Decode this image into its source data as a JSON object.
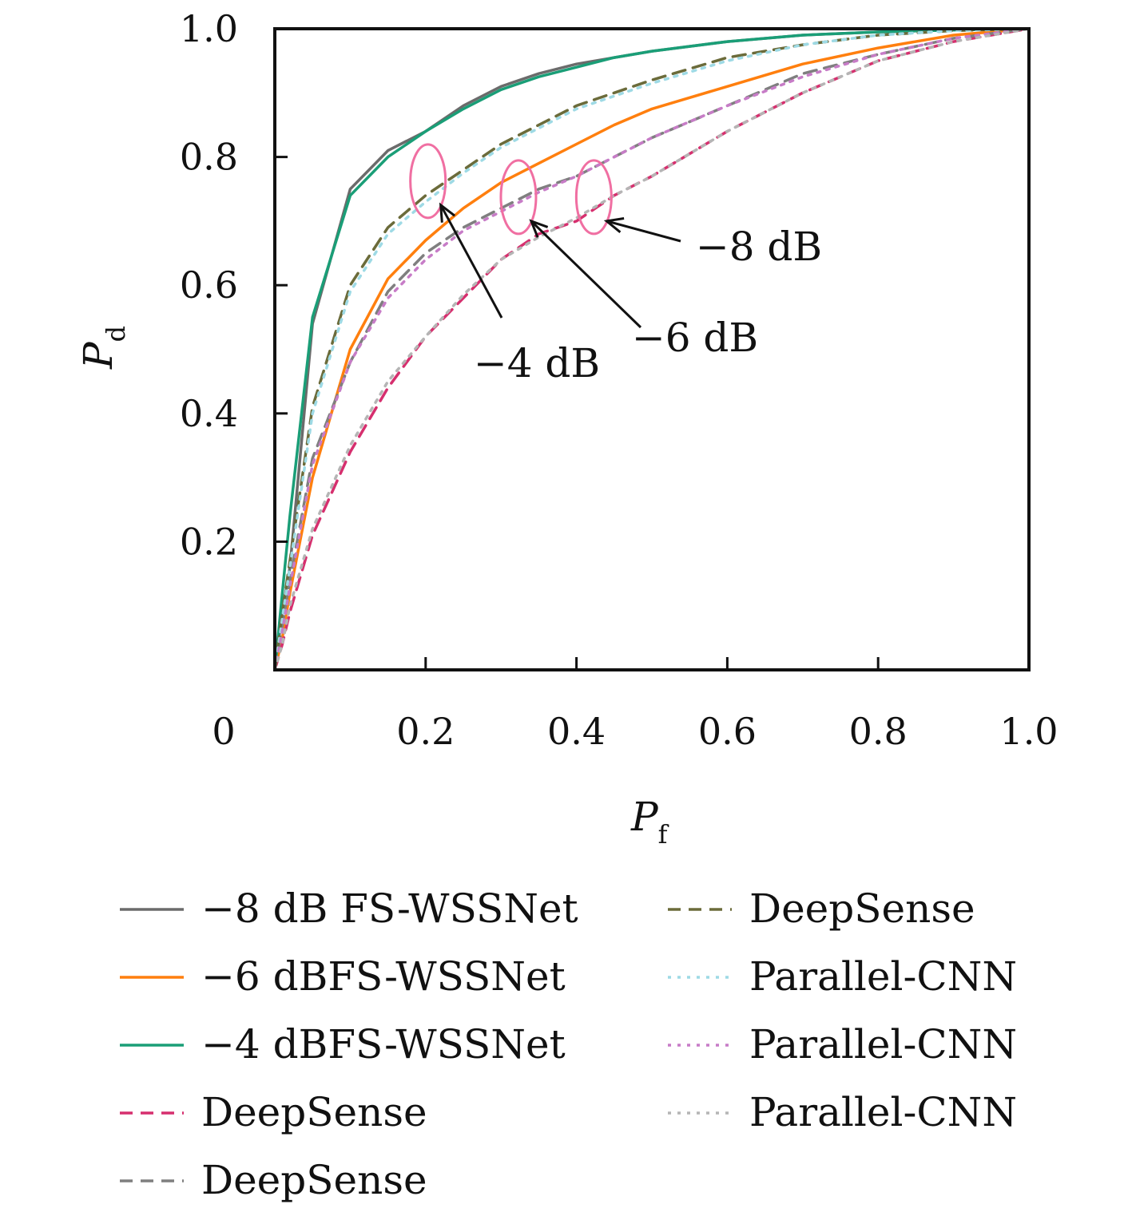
{
  "chart_data": {
    "type": "line",
    "title": "",
    "xlabel": {
      "main": "P",
      "sub": "f"
    },
    "ylabel": {
      "main": "P",
      "sub": "d"
    },
    "xlim": [
      0,
      1.0
    ],
    "ylim": [
      0,
      1.0
    ],
    "x_ticks": [
      {
        "value": 0,
        "label": "0"
      },
      {
        "value": 0.2,
        "label": "0.2"
      },
      {
        "value": 0.4,
        "label": "0.4"
      },
      {
        "value": 0.6,
        "label": "0.6"
      },
      {
        "value": 0.8,
        "label": "0.8"
      },
      {
        "value": 1.0,
        "label": "1.0"
      }
    ],
    "y_ticks": [
      {
        "value": 0.2,
        "label": "0.2"
      },
      {
        "value": 0.4,
        "label": "0.4"
      },
      {
        "value": 0.6,
        "label": "0.6"
      },
      {
        "value": 0.8,
        "label": "0.8"
      },
      {
        "value": 1.0,
        "label": "1.0"
      }
    ],
    "grid": false,
    "legend_position": "bottom",
    "x": [
      0,
      0.01,
      0.02,
      0.05,
      0.1,
      0.15,
      0.2,
      0.25,
      0.3,
      0.35,
      0.4,
      0.45,
      0.5,
      0.6,
      0.7,
      0.8,
      0.9,
      1.0
    ],
    "series": [
      {
        "name": "−8 dB FS-WSSNet",
        "color": "#6b6b6b",
        "dash": "solid",
        "values": [
          0,
          0.09,
          0.16,
          0.54,
          0.75,
          0.81,
          0.84,
          0.88,
          0.91,
          0.93,
          0.945,
          0.955,
          0.965,
          0.98,
          0.99,
          0.995,
          0.998,
          1.0
        ]
      },
      {
        "name": "−6 dBFS-WSSNet",
        "color": "#ff7f0e",
        "dash": "solid",
        "values": [
          0,
          0.05,
          0.12,
          0.3,
          0.5,
          0.61,
          0.67,
          0.72,
          0.76,
          0.79,
          0.82,
          0.85,
          0.875,
          0.91,
          0.945,
          0.97,
          0.99,
          1.0
        ]
      },
      {
        "name": "−4 dBFS-WSSNet",
        "color": "#1a9e77",
        "dash": "solid",
        "values": [
          0,
          0.12,
          0.24,
          0.55,
          0.74,
          0.8,
          0.84,
          0.875,
          0.905,
          0.925,
          0.94,
          0.955,
          0.965,
          0.98,
          0.99,
          0.995,
          0.998,
          1.0
        ]
      },
      {
        "name": "DeepSense",
        "color": "#d62f6e",
        "dash": "dashed",
        "values": [
          0,
          0.04,
          0.09,
          0.21,
          0.34,
          0.44,
          0.52,
          0.58,
          0.64,
          0.68,
          0.7,
          0.74,
          0.77,
          0.84,
          0.9,
          0.95,
          0.98,
          1.0
        ]
      },
      {
        "name": "DeepSense",
        "color": "#7f7f7f",
        "dash": "dashed",
        "values": [
          0,
          0.07,
          0.14,
          0.33,
          0.48,
          0.59,
          0.65,
          0.69,
          0.72,
          0.75,
          0.77,
          0.8,
          0.83,
          0.88,
          0.93,
          0.96,
          0.985,
          1.0
        ]
      },
      {
        "name": "DeepSense",
        "color": "#6b6b3a",
        "dash": "dashed",
        "values": [
          0,
          0.09,
          0.17,
          0.41,
          0.6,
          0.69,
          0.74,
          0.78,
          0.82,
          0.85,
          0.88,
          0.9,
          0.92,
          0.955,
          0.975,
          0.99,
          0.997,
          1.0
        ]
      },
      {
        "name": "Parallel-CNN",
        "color": "#9edae5",
        "dash": "dotted",
        "values": [
          0,
          0.08,
          0.16,
          0.4,
          0.59,
          0.68,
          0.73,
          0.775,
          0.815,
          0.845,
          0.875,
          0.895,
          0.915,
          0.95,
          0.975,
          0.99,
          0.997,
          1.0
        ]
      },
      {
        "name": "Parallel-CNN",
        "color": "#c77cc7",
        "dash": "dotted",
        "values": [
          0,
          0.06,
          0.13,
          0.32,
          0.48,
          0.58,
          0.64,
          0.685,
          0.715,
          0.745,
          0.77,
          0.8,
          0.83,
          0.88,
          0.925,
          0.96,
          0.985,
          1.0
        ]
      },
      {
        "name": "Parallel-CNN",
        "color": "#b5b5b5",
        "dash": "dotted",
        "values": [
          0,
          0.04,
          0.1,
          0.22,
          0.35,
          0.45,
          0.52,
          0.585,
          0.64,
          0.675,
          0.705,
          0.74,
          0.77,
          0.84,
          0.9,
          0.95,
          0.98,
          1.0
        ]
      }
    ],
    "annotations": [
      {
        "text": "−4 dB",
        "arrow_to": [
          0.22,
          0.725
        ]
      },
      {
        "text": "−6 dB",
        "arrow_to": [
          0.34,
          0.7
        ]
      },
      {
        "text": "−8 dB",
        "arrow_to": [
          0.44,
          0.7
        ]
      }
    ]
  }
}
